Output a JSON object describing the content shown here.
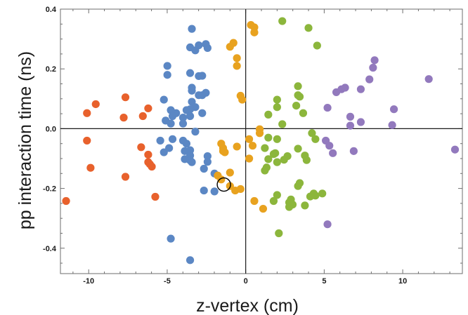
{
  "chart_data": {
    "type": "scatter",
    "title": "",
    "xlabel": "z-vertex (cm)",
    "ylabel": "pp interaction time (ns)",
    "xlim": [
      -11.8,
      13.8
    ],
    "ylim": [
      -0.485,
      0.4
    ],
    "x_ticks": [
      -10,
      -5,
      0,
      5,
      10
    ],
    "x_tick_labels": [
      "-10",
      "-5",
      "0",
      "5",
      "10"
    ],
    "y_ticks": [
      -0.4,
      -0.2,
      0.0,
      0.2,
      0.4
    ],
    "y_tick_labels": [
      "-0.4",
      "-0.2",
      "0.0",
      "0.2",
      "0.4"
    ],
    "grid": false,
    "frame": true,
    "zero_lines": true,
    "highlighted_point": [
      -1.39,
      -0.187
    ],
    "series": [
      {
        "color": "#e8612c",
        "points": [
          [
            -11.44,
            -0.242
          ],
          [
            -10.11,
            0.052
          ],
          [
            -9.55,
            0.082
          ],
          [
            -10.11,
            -0.04
          ],
          [
            -9.88,
            -0.131
          ],
          [
            -7.66,
            0.105
          ],
          [
            -7.77,
            0.037
          ],
          [
            -7.66,
            -0.161
          ],
          [
            -6.55,
            0.042
          ],
          [
            -6.21,
            0.068
          ],
          [
            -6.66,
            -0.062
          ],
          [
            -6.21,
            -0.087
          ],
          [
            -6.21,
            -0.112
          ],
          [
            -6.1,
            -0.119
          ],
          [
            -5.98,
            -0.127
          ],
          [
            -5.76,
            -0.228
          ]
        ]
      },
      {
        "color": "#5b87c4",
        "points": [
          [
            -3.43,
            0.334
          ],
          [
            -3.54,
            0.272
          ],
          [
            -3.21,
            0.262
          ],
          [
            -2.99,
            0.279
          ],
          [
            -2.43,
            0.27
          ],
          [
            -2.54,
            0.283
          ],
          [
            -4.99,
            0.21
          ],
          [
            -4.99,
            0.18
          ],
          [
            -3.54,
            0.186
          ],
          [
            -2.99,
            0.176
          ],
          [
            -2.77,
            0.177
          ],
          [
            -3.43,
            0.137
          ],
          [
            -2.54,
            0.12
          ],
          [
            -5.21,
            0.097
          ],
          [
            -3.43,
            0.127
          ],
          [
            -2.99,
            0.112
          ],
          [
            -2.77,
            0.112
          ],
          [
            -3.43,
            0.09
          ],
          [
            -3.21,
            0.072
          ],
          [
            -3.54,
            0.065
          ],
          [
            -3.77,
            0.062
          ],
          [
            -4.77,
            0.062
          ],
          [
            -4.43,
            0.052
          ],
          [
            -3.54,
            0.042
          ],
          [
            -4.66,
            0.042
          ],
          [
            -3.99,
            0.037
          ],
          [
            -5.1,
            0.027
          ],
          [
            -3.99,
            0.017
          ],
          [
            -2.77,
            0.052
          ],
          [
            -4.77,
            0.017
          ],
          [
            -3.21,
            -0.01
          ],
          [
            -5.44,
            -0.04
          ],
          [
            -3.99,
            -0.04
          ],
          [
            -3.77,
            -0.05
          ],
          [
            -3.88,
            -0.075
          ],
          [
            -4.66,
            -0.035
          ],
          [
            -5.21,
            -0.079
          ],
          [
            -4.88,
            -0.065
          ],
          [
            -3.54,
            -0.072
          ],
          [
            -3.54,
            -0.09
          ],
          [
            -3.88,
            -0.102
          ],
          [
            -3.54,
            -0.106
          ],
          [
            -3.43,
            -0.112
          ],
          [
            -2.43,
            -0.092
          ],
          [
            -2.43,
            -0.111
          ],
          [
            -2.66,
            -0.134
          ],
          [
            -1.99,
            -0.15
          ],
          [
            -2.66,
            -0.207
          ],
          [
            -1.99,
            -0.21
          ],
          [
            -4.77,
            -0.368
          ],
          [
            -3.54,
            -0.44
          ]
        ]
      },
      {
        "color": "#e8a21f",
        "points": [
          [
            0.33,
            0.347
          ],
          [
            0.55,
            0.339
          ],
          [
            0.55,
            0.322
          ],
          [
            -0.78,
            0.287
          ],
          [
            -1.0,
            0.274
          ],
          [
            -0.56,
            0.236
          ],
          [
            -0.56,
            0.21
          ],
          [
            -0.33,
            0.11
          ],
          [
            -0.22,
            0.097
          ],
          [
            -1.56,
            -0.05
          ],
          [
            -1.44,
            -0.065
          ],
          [
            -1.44,
            -0.075
          ],
          [
            -1.33,
            -0.079
          ],
          [
            -0.56,
            -0.06
          ],
          [
            0.22,
            -0.035
          ],
          [
            0.89,
            -0.015
          ],
          [
            0.89,
            -0.002
          ],
          [
            0.44,
            -0.057
          ],
          [
            0.22,
            -0.1
          ],
          [
            -1.78,
            -0.157
          ],
          [
            -1.0,
            -0.147
          ],
          [
            -1.56,
            -0.17
          ],
          [
            -1.0,
            -0.192
          ],
          [
            -0.67,
            -0.207
          ],
          [
            -0.33,
            -0.202
          ],
          [
            0.55,
            -0.242
          ],
          [
            1.11,
            -0.268
          ]
        ]
      },
      {
        "color": "#8cb63c",
        "points": [
          [
            2.33,
            0.36
          ],
          [
            4.0,
            0.337
          ],
          [
            4.55,
            0.278
          ],
          [
            3.33,
            0.142
          ],
          [
            3.33,
            0.112
          ],
          [
            3.44,
            0.107
          ],
          [
            2.0,
            0.097
          ],
          [
            3.22,
            0.077
          ],
          [
            2.0,
            0.072
          ],
          [
            3.66,
            0.052
          ],
          [
            1.44,
            0.047
          ],
          [
            2.33,
            0.015
          ],
          [
            1.44,
            -0.03
          ],
          [
            2.0,
            -0.035
          ],
          [
            4.22,
            -0.015
          ],
          [
            4.44,
            -0.035
          ],
          [
            3.33,
            -0.067
          ],
          [
            3.77,
            -0.09
          ],
          [
            2.66,
            -0.092
          ],
          [
            3.88,
            -0.105
          ],
          [
            1.88,
            -0.082
          ],
          [
            1.22,
            -0.065
          ],
          [
            1.78,
            -0.085
          ],
          [
            2.44,
            -0.104
          ],
          [
            1.44,
            -0.102
          ],
          [
            2.0,
            -0.112
          ],
          [
            1.33,
            -0.13
          ],
          [
            1.22,
            -0.14
          ],
          [
            3.33,
            -0.192
          ],
          [
            2.0,
            -0.222
          ],
          [
            1.78,
            -0.242
          ],
          [
            2.88,
            -0.237
          ],
          [
            2.99,
            -0.254
          ],
          [
            2.77,
            -0.262
          ],
          [
            4.33,
            -0.217
          ],
          [
            4.88,
            -0.217
          ],
          [
            3.77,
            -0.257
          ],
          [
            2.11,
            -0.35
          ],
          [
            2.77,
            -0.247
          ],
          [
            4.11,
            -0.227
          ],
          [
            4.44,
            -0.224
          ],
          [
            3.44,
            -0.182
          ]
        ]
      },
      {
        "color": "#9279bd",
        "points": [
          [
            8.21,
            0.229
          ],
          [
            8.11,
            0.204
          ],
          [
            11.66,
            0.166
          ],
          [
            7.88,
            0.165
          ],
          [
            6.1,
            0.132
          ],
          [
            6.33,
            0.137
          ],
          [
            5.77,
            0.122
          ],
          [
            7.33,
            0.132
          ],
          [
            9.44,
            0.065
          ],
          [
            5.21,
            0.07
          ],
          [
            6.66,
            0.04
          ],
          [
            7.33,
            0.022
          ],
          [
            6.66,
            0.01
          ],
          [
            9.33,
            0.012
          ],
          [
            5.1,
            -0.04
          ],
          [
            5.33,
            -0.057
          ],
          [
            5.55,
            -0.082
          ],
          [
            6.88,
            -0.075
          ],
          [
            13.33,
            -0.07
          ],
          [
            5.21,
            -0.32
          ]
        ]
      }
    ]
  }
}
